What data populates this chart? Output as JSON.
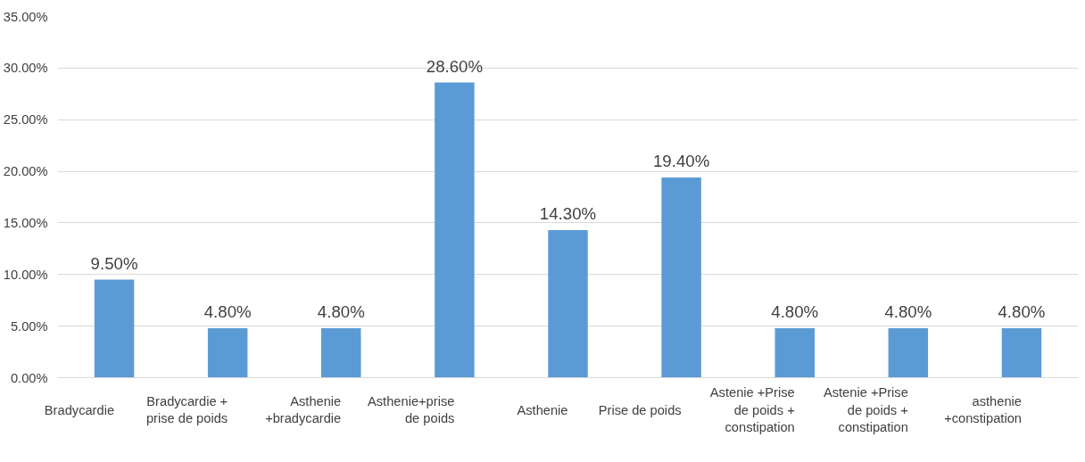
{
  "chart_data": {
    "type": "bar",
    "categories": [
      "Bradycardie",
      "Bradycardie +\nprise de poids",
      "Asthenie\n+bradycardie",
      "Asthenie+prise\nde poids",
      "Asthenie",
      "Prise de poids",
      "Astenie +Prise\nde poids +\nconstipation",
      "Astenie +Prise\nde poids +\nconstipation",
      "asthenie\n+constipation"
    ],
    "values": [
      9.5,
      4.8,
      4.8,
      28.6,
      14.3,
      19.4,
      4.8,
      4.8,
      4.8
    ],
    "value_labels": [
      "9.50%",
      "4.80%",
      "4.80%",
      "28.60%",
      "14.30%",
      "19.40%",
      "4.80%",
      "4.80%",
      "4.80%"
    ],
    "color": "#5b9bd5",
    "ylim": [
      0,
      35
    ],
    "yticks": [
      {
        "value": 0,
        "label": "0.00%"
      },
      {
        "value": 5,
        "label": "5.00%"
      },
      {
        "value": 10,
        "label": "10.00%"
      },
      {
        "value": 15,
        "label": "15.00%"
      },
      {
        "value": 20,
        "label": "20.00%"
      },
      {
        "value": 25,
        "label": "25.00%"
      },
      {
        "value": 30,
        "label": "30.00%"
      },
      {
        "value": 35,
        "label": "35.00%"
      }
    ],
    "grid": "y"
  }
}
